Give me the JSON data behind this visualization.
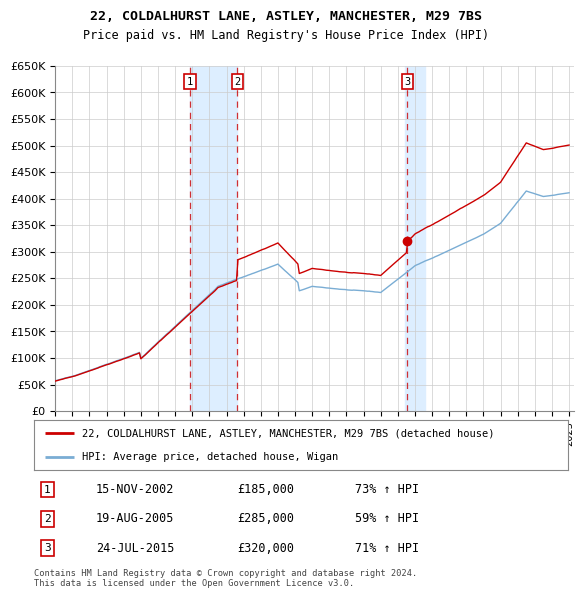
{
  "title1": "22, COLDALHURST LANE, ASTLEY, MANCHESTER, M29 7BS",
  "title2": "Price paid vs. HM Land Registry's House Price Index (HPI)",
  "ylabel_ticks": [
    "£0",
    "£50K",
    "£100K",
    "£150K",
    "£200K",
    "£250K",
    "£300K",
    "£350K",
    "£400K",
    "£450K",
    "£500K",
    "£550K",
    "£600K",
    "£650K"
  ],
  "ytick_values": [
    0,
    50000,
    100000,
    150000,
    200000,
    250000,
    300000,
    350000,
    400000,
    450000,
    500000,
    550000,
    600000,
    650000
  ],
  "x_start_year": 1995,
  "x_end_year": 2025,
  "sale_dates": [
    2002.88,
    2005.64,
    2015.56
  ],
  "sale_prices": [
    185000,
    285000,
    320000
  ],
  "sale_labels": [
    "1",
    "2",
    "3"
  ],
  "sale_info": [
    {
      "label": "1",
      "date": "15-NOV-2002",
      "price": "£185,000",
      "hpi": "73% ↑ HPI"
    },
    {
      "label": "2",
      "date": "19-AUG-2005",
      "price": "£285,000",
      "hpi": "59% ↑ HPI"
    },
    {
      "label": "3",
      "date": "24-JUL-2015",
      "price": "£320,000",
      "hpi": "71% ↑ HPI"
    }
  ],
  "hpi_line_color": "#7aadd4",
  "sale_line_color": "#cc0000",
  "highlight_bg_color": "#ddeeff",
  "grid_color": "#cccccc",
  "footer_text": "Contains HM Land Registry data © Crown copyright and database right 2024.\nThis data is licensed under the Open Government Licence v3.0.",
  "legend_entries": [
    "22, COLDALHURST LANE, ASTLEY, MANCHESTER, M29 7BS (detached house)",
    "HPI: Average price, detached house, Wigan"
  ],
  "sale_dot_color": "#cc0000"
}
